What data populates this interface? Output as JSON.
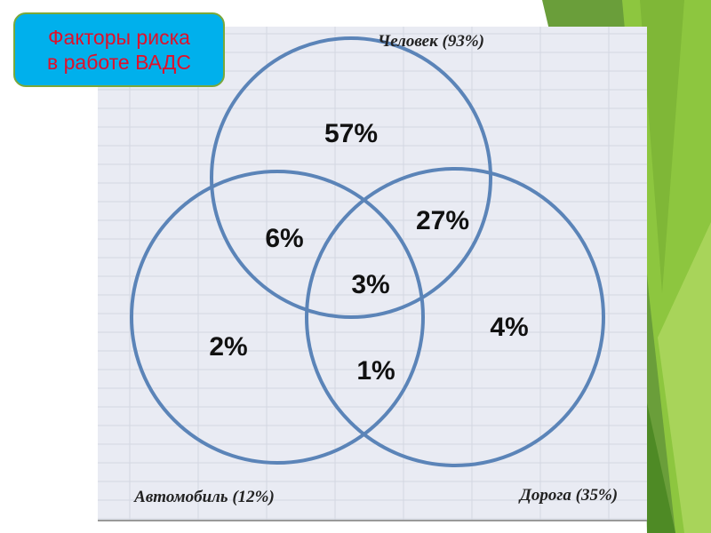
{
  "title": {
    "line1": "Факторы риска",
    "line2": "в работе ВАДС"
  },
  "colors": {
    "title_bg": "#00b0ec",
    "title_text": "#e0102a",
    "circle_stroke": "#5b84b8",
    "accent_green": "#8dc63f"
  },
  "diagram": {
    "sets": [
      {
        "label": "Человек (93%)"
      },
      {
        "label": "Автомобиль (12%)"
      },
      {
        "label": "Дорога (35%)"
      }
    ],
    "regions": {
      "human_only": "57%",
      "human_car": "6%",
      "human_road": "27%",
      "all_three": "3%",
      "car_only": "2%",
      "car_road": "1%",
      "road_only": "4%"
    }
  }
}
